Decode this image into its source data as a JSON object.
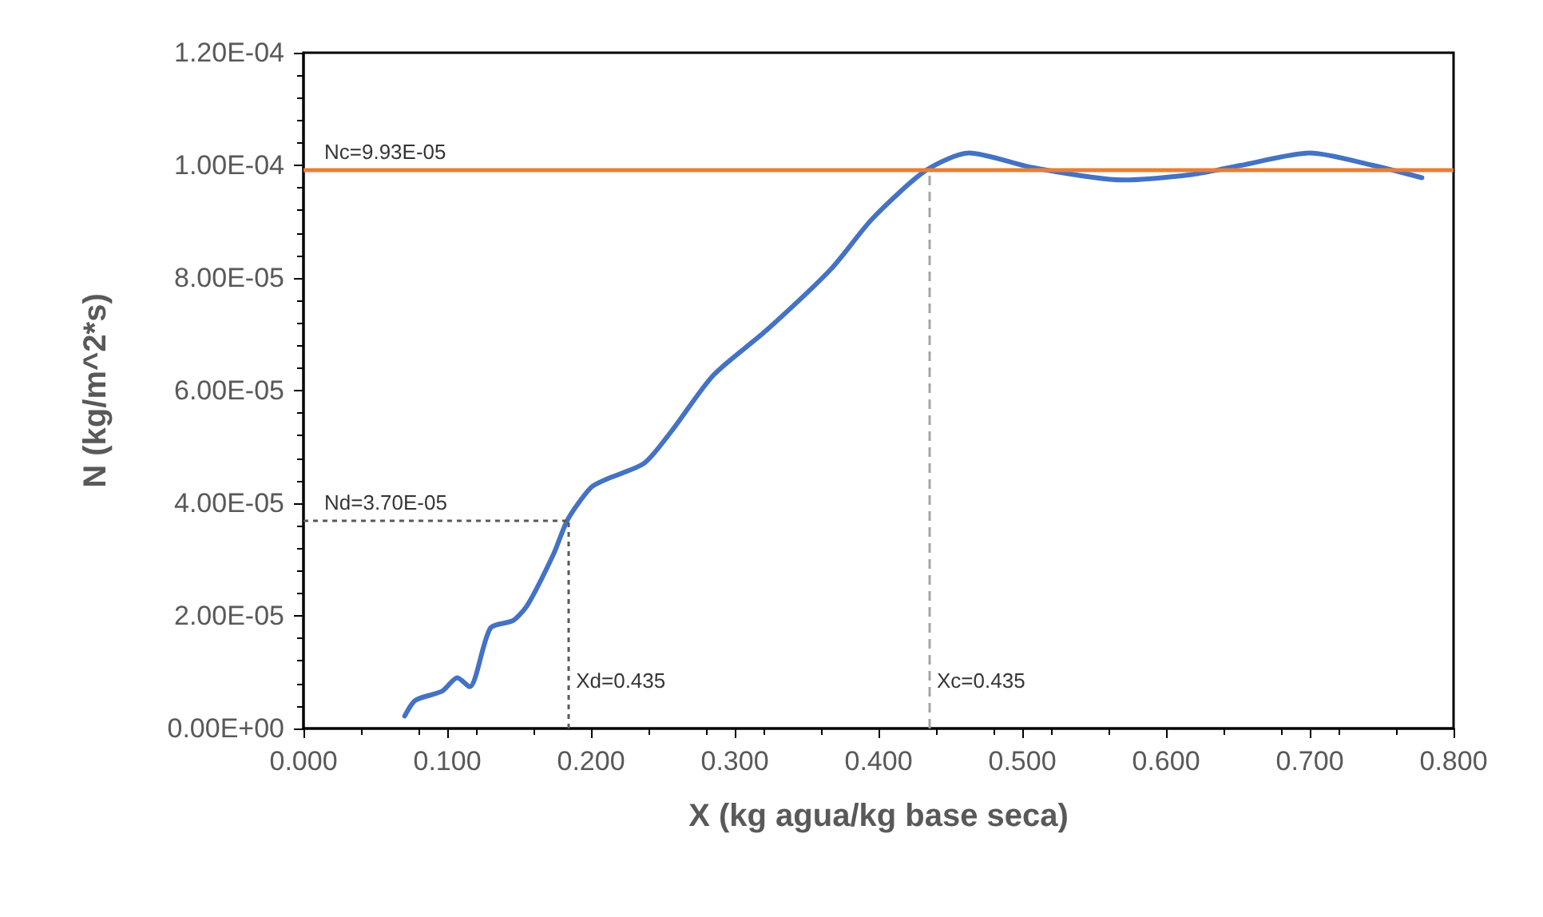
{
  "chart_data": {
    "type": "line",
    "xlabel": "X (kg agua/kg base seca)",
    "ylabel": "N (kg/m^2*s)",
    "x": [
      0.0704,
      0.0778,
      0.0963,
      0.107,
      0.1156,
      0.13,
      0.146,
      0.156,
      0.174,
      0.184,
      0.2,
      0.211,
      0.237,
      0.256,
      0.285,
      0.322,
      0.367,
      0.396,
      0.433,
      0.463,
      0.507,
      0.57,
      0.619,
      0.652,
      0.7,
      0.744,
      0.778
    ],
    "series": [
      {
        "color": "#4472c4",
        "values": [
          2.2e-06,
          5e-06,
          6.6e-06,
          9e-06,
          7.4e-06,
          1.78e-05,
          1.92e-05,
          2.2e-05,
          3.1e-05,
          3.72e-05,
          4.28e-05,
          4.43e-05,
          4.71e-05,
          5.28e-05,
          6.27e-05,
          7.07e-05,
          8.16e-05,
          9.06e-05,
          9.91e-05,
          0.0001022,
          9.96e-05,
          9.74e-05,
          9.84e-05,
          0.0001,
          0.0001022,
          0.0001,
          9.78e-05
        ]
      }
    ],
    "xlim": [
      0,
      0.8
    ],
    "xticks": [
      {
        "value": 0,
        "label": "0.000"
      },
      {
        "value": 0.1,
        "label": "0.100"
      },
      {
        "value": 0.2,
        "label": "0.200"
      },
      {
        "value": 0.3,
        "label": "0.300"
      },
      {
        "value": 0.4,
        "label": "0.400"
      },
      {
        "value": 0.5,
        "label": "0.500"
      },
      {
        "value": 0.6,
        "label": "0.600"
      },
      {
        "value": 0.7,
        "label": "0.700"
      },
      {
        "value": 0.8,
        "label": "0.800"
      }
    ],
    "ylim": [
      0,
      0.00012
    ],
    "yticks": [
      {
        "value": 0,
        "label": "0.00E+00"
      },
      {
        "value": 2e-05,
        "label": "2.00E-05"
      },
      {
        "value": 4e-05,
        "label": "4.00E-05"
      },
      {
        "value": 6e-05,
        "label": "6.00E-05"
      },
      {
        "value": 8e-05,
        "label": "8.00E-05"
      },
      {
        "value": 0.0001,
        "label": "1.00E-04"
      },
      {
        "value": 0.00012,
        "label": "1.20E-04"
      }
    ],
    "ref_lines": [
      {
        "axis": "y",
        "value": 9.93e-05,
        "color": "#ed7d31",
        "line_style": "solid"
      },
      {
        "axis": "x",
        "value": 0.435,
        "label": "Xc=0.435",
        "color": "#a5a5a5",
        "line_style": "dashed"
      },
      {
        "axis": "y",
        "value": 3.7e-05,
        "color": "#595959",
        "line_style": "dotted"
      },
      {
        "axis": "x",
        "value": 0.184,
        "color": "#595959",
        "line_style": "dotted"
      }
    ],
    "annotations": [
      "Nc=9.93E-05",
      "Nd=3.70E-05",
      "Xd=0.435"
    ],
    "grid": false,
    "marker": "none",
    "line_style": "solid"
  }
}
